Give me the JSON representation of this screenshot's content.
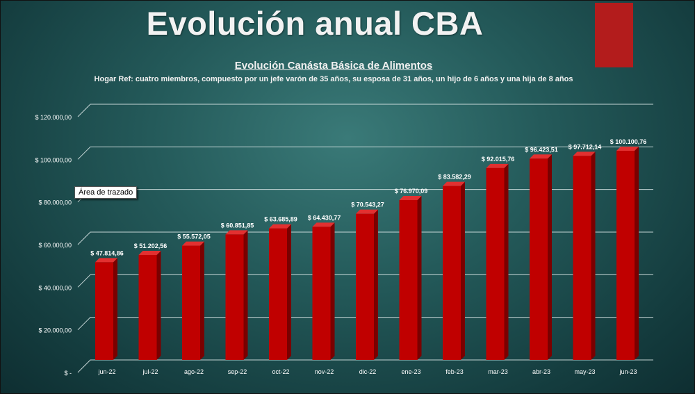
{
  "slide": {
    "title": "Evolución anual CBA",
    "accent_color": "#b31c1c",
    "tooltip": "Área de trazado"
  },
  "chart_data": {
    "type": "bar",
    "title": "Evolución Canásta Básica de Alimentos",
    "subtitle": "Hogar Ref: cuatro miembros, compuesto por un jefe varón de 35 años, su esposa de 31 años, un hijo de 6 años y una hija de 8 años",
    "categories": [
      "jun-22",
      "jul-22",
      "ago-22",
      "sep-22",
      "oct-22",
      "nov-22",
      "dic-22",
      "ene-23",
      "feb-23",
      "mar-23",
      "abr-23",
      "may-23",
      "jun-23"
    ],
    "values": [
      47814.86,
      51202.56,
      55572.05,
      60851.85,
      63685.89,
      64430.77,
      70543.27,
      76970.09,
      83582.29,
      92015.76,
      96423.51,
      97712.14,
      100100.76
    ],
    "value_labels": [
      "$ 47.814,86",
      "$ 51.202,56",
      "$ 55.572,05",
      "$ 60.851,85",
      "$ 63.685,89",
      "$ 64.430,77",
      "$ 70.543,27",
      "$ 76.970,09",
      "$ 83.582,29",
      "$ 92.015,76",
      "$ 96.423,51",
      "$ 97.712,14",
      "$ 100.100,76"
    ],
    "y_ticks": [
      0,
      20000,
      40000,
      60000,
      80000,
      100000,
      120000
    ],
    "y_tick_labels": [
      "$ -",
      "$ 20.000,00",
      "$ 40.000,00",
      "$ 60.000,00",
      "$ 80.000,00",
      "$ 100.000,00",
      "$ 120.000,00"
    ],
    "ylim": [
      0,
      120000
    ],
    "grid": true,
    "bar_color": "#c00000",
    "xlabel": "",
    "ylabel": ""
  }
}
